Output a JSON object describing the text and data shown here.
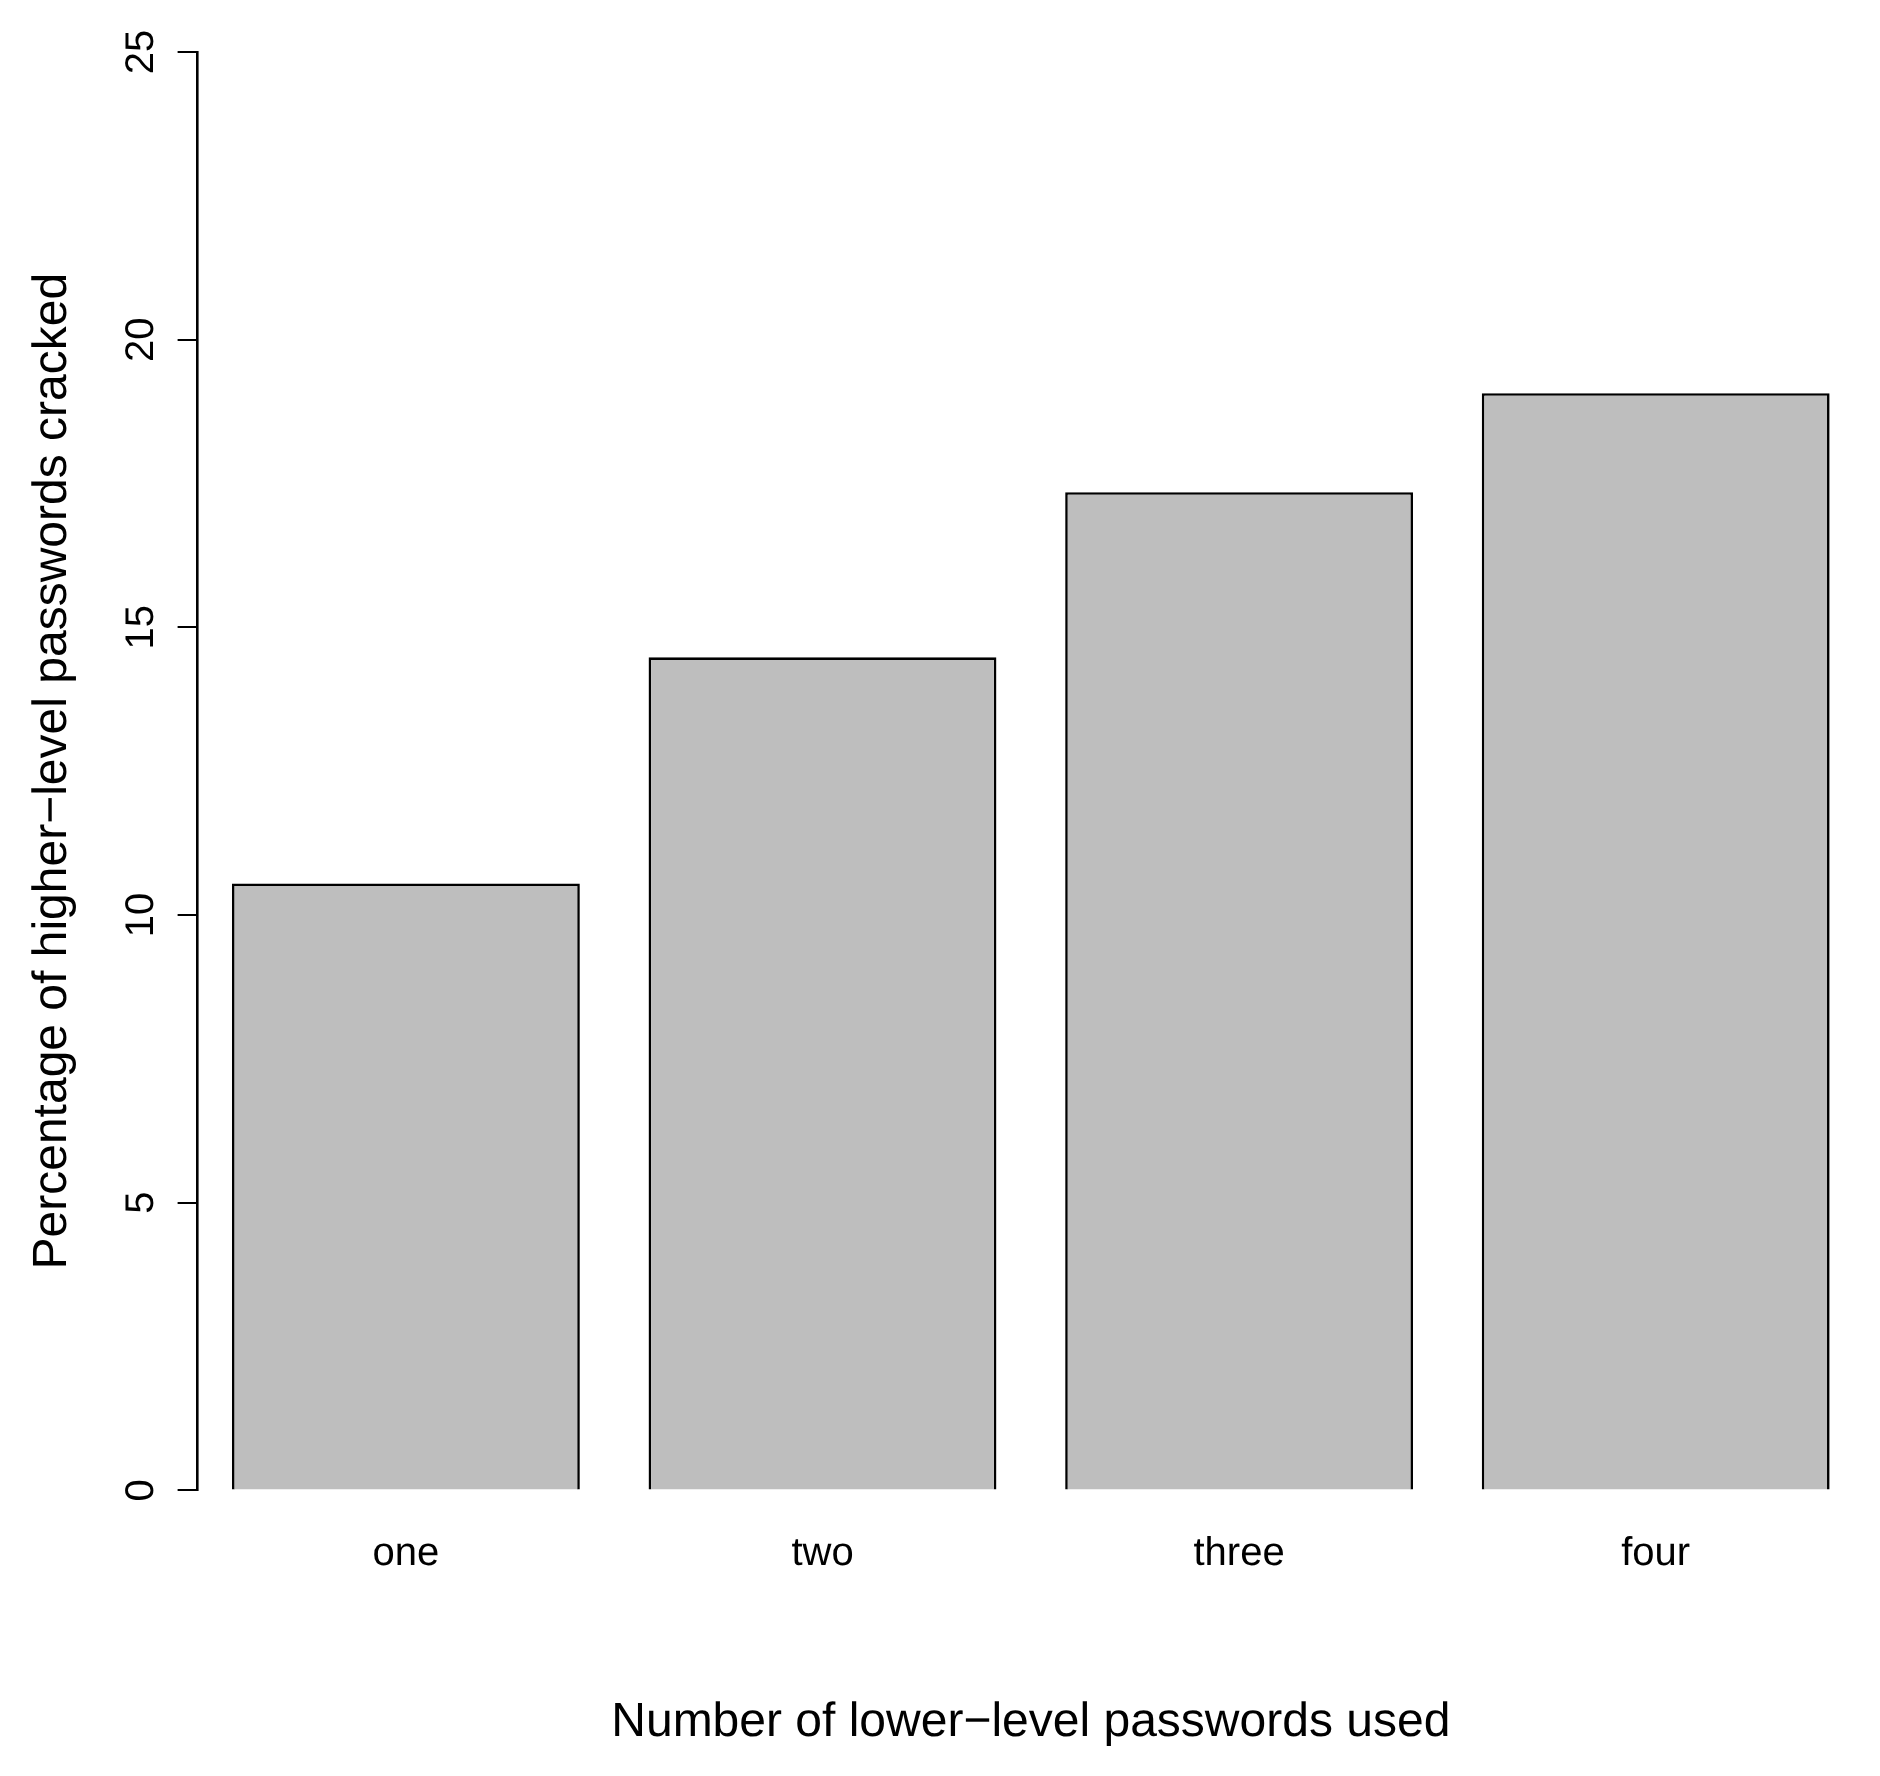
{
  "chart_data": {
    "type": "bar",
    "xlabel": "Number of lower−level passwords used",
    "ylabel": "Percentage of higher−level passwords cracked",
    "categories": [
      "one",
      "two",
      "three",
      "four"
    ],
    "values": [
      10.55,
      14.48,
      17.35,
      19.07
    ],
    "color": "#bebebe",
    "ylim": [
      0,
      25
    ],
    "yticks": [
      0,
      5,
      10,
      15,
      20,
      25
    ],
    "grid": false,
    "legend": false
  }
}
